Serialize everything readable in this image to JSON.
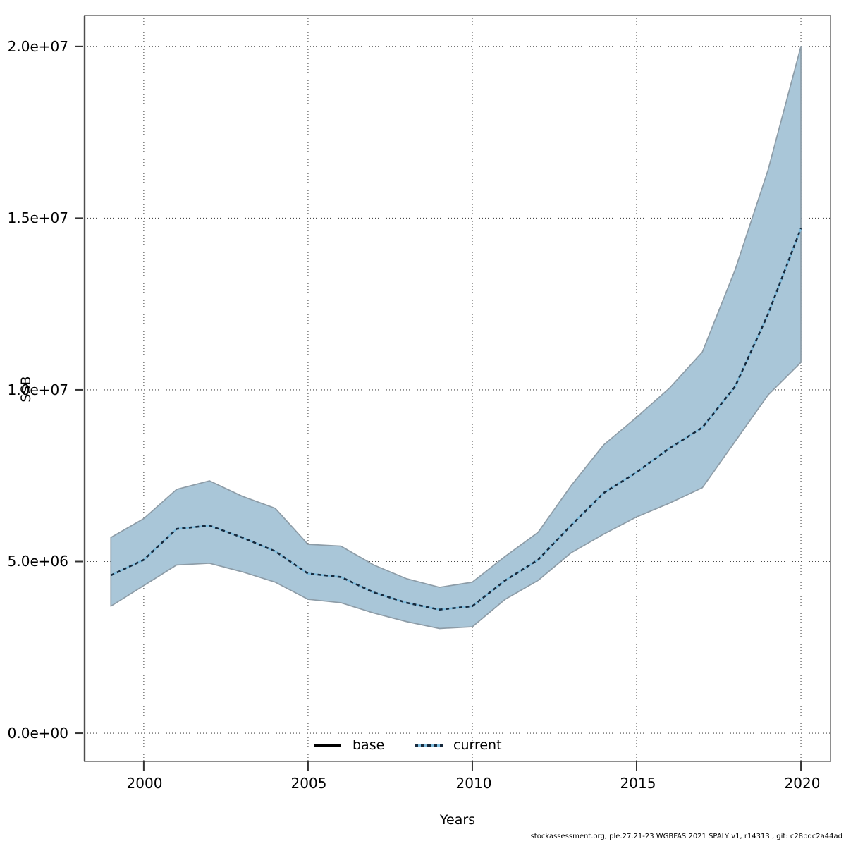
{
  "chart_data": {
    "type": "line",
    "title": "",
    "xlabel": "Years",
    "ylabel": "SSB",
    "x": [
      1999,
      2000,
      2001,
      2002,
      2003,
      2004,
      2005,
      2006,
      2007,
      2008,
      2009,
      2010,
      2011,
      2012,
      2013,
      2014,
      2015,
      2016,
      2017,
      2018,
      2019,
      2020
    ],
    "series": [
      {
        "name": "current",
        "line_style": "dotted",
        "values": [
          4600000,
          5050000,
          5950000,
          6050000,
          5700000,
          5300000,
          4650000,
          4550000,
          4100000,
          3800000,
          3600000,
          3700000,
          4450000,
          5050000,
          6050000,
          7000000,
          7600000,
          8300000,
          8900000,
          10100000,
          12200000,
          14700000
        ]
      }
    ],
    "band": {
      "name": "confidence-band",
      "upper": [
        5700000,
        6250000,
        7100000,
        7350000,
        6900000,
        6550000,
        5500000,
        5450000,
        4900000,
        4500000,
        4250000,
        4400000,
        5150000,
        5850000,
        7200000,
        8400000,
        9200000,
        10050000,
        11100000,
        13500000,
        16400000,
        20000000
      ],
      "lower": [
        3700000,
        4300000,
        4900000,
        4950000,
        4700000,
        4400000,
        3900000,
        3800000,
        3500000,
        3250000,
        3050000,
        3100000,
        3900000,
        4450000,
        5250000,
        5800000,
        6300000,
        6700000,
        7150000,
        8500000,
        9850000,
        10800000
      ]
    },
    "xticks": [
      2000,
      2005,
      2010,
      2015,
      2020
    ],
    "xticklabels": [
      "2000",
      "2005",
      "2010",
      "2015",
      "2020"
    ],
    "yticks": [
      0,
      5000000,
      10000000,
      15000000,
      20000000
    ],
    "yticklabels": [
      "0.0e+00",
      "5.0e+06",
      "1.0e+07",
      "1.5e+07",
      "2.0e+07"
    ],
    "xlim": [
      1998.2,
      2020.9
    ],
    "ylim": [
      -820000,
      20900000
    ],
    "grid": "dotted-both-axes",
    "legend": {
      "position": "bottom-center-inside",
      "entries": [
        {
          "label": "base",
          "line": "solid",
          "color": "#000000"
        },
        {
          "label": "current",
          "line": "dotted",
          "color": "#7fbcdd",
          "dash_color": "#16293c"
        }
      ]
    },
    "colors": {
      "band_fill": "#a9c6d8",
      "band_edge": "#8d9ca7",
      "current_line": "#7fbcdd",
      "current_dash": "#16293c",
      "grid": "#4a4a4a",
      "frame": "#8e8e8e",
      "axis": "#4d4d4d",
      "tick": "#333333"
    }
  },
  "footer": "stockassessment.org, ple.27.21-23 WGBFAS 2021 SPALY v1, r14313 , git: c28bdc2a44ad"
}
